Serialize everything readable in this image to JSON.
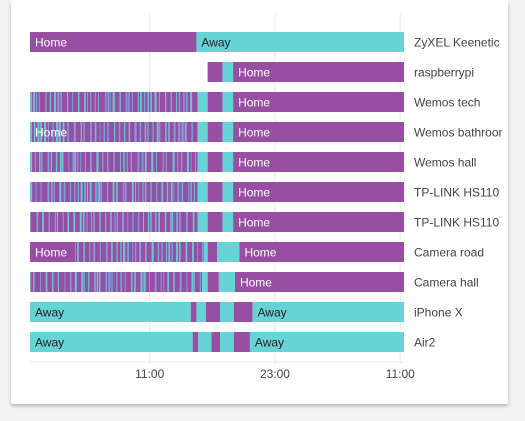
{
  "colors": {
    "home": "#984ea3",
    "away": "#66d3d6",
    "stripe_light": "#7ba6e2",
    "text_on_bar": "#ffffff",
    "text_on_away": "#222222",
    "label": "#444444",
    "grid": "#ebebeb"
  },
  "chart_data": {
    "type": "timeline",
    "x_ticks": [
      "11:00",
      "23:00",
      "11:00"
    ],
    "rows": [
      {
        "label": "ZyXEL Keenetic",
        "segments": [
          {
            "state": "Home",
            "start": 0.0,
            "end": 0.445,
            "text": "Home"
          },
          {
            "state": "Away",
            "start": 0.445,
            "end": 1.0,
            "text": "Away"
          }
        ]
      },
      {
        "label": "raspberrypi",
        "segments": [
          {
            "state": "Home",
            "start": 0.475,
            "end": 0.515
          },
          {
            "state": "Away",
            "start": 0.515,
            "end": 0.543
          },
          {
            "state": "Home",
            "start": 0.543,
            "end": 1.0,
            "text": "Home"
          }
        ]
      },
      {
        "label": "Wemos tech",
        "striped": [
          0.0,
          0.445
        ],
        "segments": [
          {
            "state": "Home",
            "start": 0.0,
            "end": 0.448
          },
          {
            "state": "Away",
            "start": 0.448,
            "end": 0.475
          },
          {
            "state": "Home",
            "start": 0.475,
            "end": 0.515
          },
          {
            "state": "Away",
            "start": 0.515,
            "end": 0.543
          },
          {
            "state": "Home",
            "start": 0.543,
            "end": 1.0,
            "text": "Home"
          }
        ]
      },
      {
        "label": "Wemos bathroom",
        "striped": [
          0.0,
          0.445
        ],
        "segments": [
          {
            "state": "Home",
            "start": 0.0,
            "end": 0.448,
            "text": "Home"
          },
          {
            "state": "Away",
            "start": 0.448,
            "end": 0.475
          },
          {
            "state": "Home",
            "start": 0.475,
            "end": 0.515
          },
          {
            "state": "Away",
            "start": 0.515,
            "end": 0.543
          },
          {
            "state": "Home",
            "start": 0.543,
            "end": 1.0,
            "text": "Home"
          }
        ]
      },
      {
        "label": "Wemos hall",
        "striped": [
          0.0,
          0.445
        ],
        "segments": [
          {
            "state": "Home",
            "start": 0.0,
            "end": 0.448
          },
          {
            "state": "Away",
            "start": 0.448,
            "end": 0.475
          },
          {
            "state": "Home",
            "start": 0.475,
            "end": 0.515
          },
          {
            "state": "Away",
            "start": 0.515,
            "end": 0.543
          },
          {
            "state": "Home",
            "start": 0.543,
            "end": 1.0,
            "text": "Home"
          }
        ]
      },
      {
        "label": "TP-LINK HS110",
        "striped": [
          0.0,
          0.445
        ],
        "segments": [
          {
            "state": "Home",
            "start": 0.0,
            "end": 0.448
          },
          {
            "state": "Away",
            "start": 0.448,
            "end": 0.475
          },
          {
            "state": "Home",
            "start": 0.475,
            "end": 0.515
          },
          {
            "state": "Away",
            "start": 0.515,
            "end": 0.543
          },
          {
            "state": "Home",
            "start": 0.543,
            "end": 1.0,
            "text": "Home"
          }
        ]
      },
      {
        "label": "TP-LINK HS110",
        "striped": [
          0.0,
          0.445
        ],
        "segments": [
          {
            "state": "Home",
            "start": 0.0,
            "end": 0.448
          },
          {
            "state": "Away",
            "start": 0.448,
            "end": 0.475
          },
          {
            "state": "Home",
            "start": 0.475,
            "end": 0.515
          },
          {
            "state": "Away",
            "start": 0.515,
            "end": 0.543
          },
          {
            "state": "Home",
            "start": 0.543,
            "end": 1.0,
            "text": "Home"
          }
        ]
      },
      {
        "label": "Camera road",
        "striped": [
          0.12,
          0.47
        ],
        "segments": [
          {
            "state": "Home",
            "start": 0.0,
            "end": 0.465,
            "text": "Home"
          },
          {
            "state": "Away",
            "start": 0.465,
            "end": 0.475
          },
          {
            "state": "Home",
            "start": 0.475,
            "end": 0.5
          },
          {
            "state": "Away",
            "start": 0.5,
            "end": 0.56
          },
          {
            "state": "Home",
            "start": 0.56,
            "end": 1.0,
            "text": "Home"
          }
        ]
      },
      {
        "label": "Camera hall",
        "striped": [
          0.0,
          0.46
        ],
        "segments": [
          {
            "state": "Home",
            "start": 0.0,
            "end": 0.46
          },
          {
            "state": "Away",
            "start": 0.46,
            "end": 0.475
          },
          {
            "state": "Home",
            "start": 0.475,
            "end": 0.505
          },
          {
            "state": "Away",
            "start": 0.505,
            "end": 0.548
          },
          {
            "state": "Home",
            "start": 0.548,
            "end": 1.0,
            "text": "Home"
          }
        ]
      },
      {
        "label": "iPhone X",
        "segments": [
          {
            "state": "Away",
            "start": 0.0,
            "end": 0.43,
            "text": "Away"
          },
          {
            "state": "Home",
            "start": 0.43,
            "end": 0.445
          },
          {
            "state": "Away",
            "start": 0.445,
            "end": 0.47
          },
          {
            "state": "Home",
            "start": 0.47,
            "end": 0.508
          },
          {
            "state": "Away",
            "start": 0.508,
            "end": 0.545
          },
          {
            "state": "Home",
            "start": 0.545,
            "end": 0.595
          },
          {
            "state": "Away",
            "start": 0.595,
            "end": 1.0,
            "text": "Away"
          }
        ]
      },
      {
        "label": "Air2",
        "segments": [
          {
            "state": "Away",
            "start": 0.0,
            "end": 0.435,
            "text": "Away"
          },
          {
            "state": "Home",
            "start": 0.435,
            "end": 0.45
          },
          {
            "state": "Away",
            "start": 0.45,
            "end": 0.485
          },
          {
            "state": "Home",
            "start": 0.485,
            "end": 0.508
          },
          {
            "state": "Away",
            "start": 0.508,
            "end": 0.545
          },
          {
            "state": "Home",
            "start": 0.545,
            "end": 0.588
          },
          {
            "state": "Away",
            "start": 0.588,
            "end": 1.0,
            "text": "Away"
          }
        ]
      }
    ]
  }
}
